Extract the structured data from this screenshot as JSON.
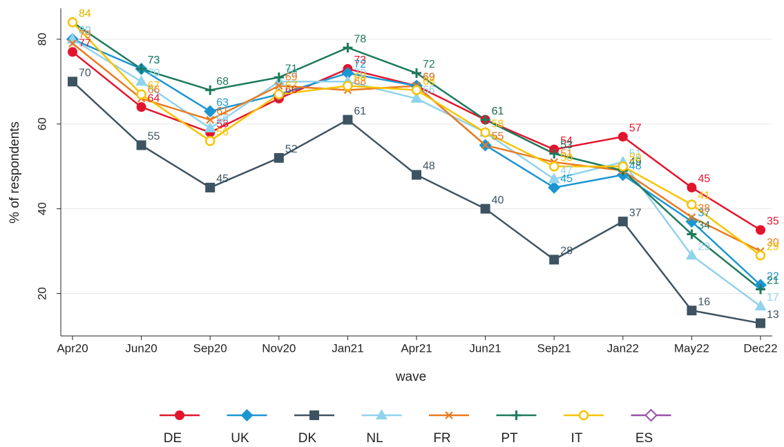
{
  "chart_data": {
    "type": "line",
    "categories": [
      "Apr20",
      "Jun20",
      "Sep20",
      "Nov20",
      "Jan21",
      "Apr21",
      "Jun21",
      "Sep21",
      "Jan22",
      "May22",
      "Dec22"
    ],
    "x_label": "wave",
    "y_label": "% of respondents",
    "ylim": [
      10,
      87.3
    ],
    "yticks": [
      20,
      40,
      60,
      80
    ],
    "grid": true,
    "series": [
      {
        "name": "DE",
        "color": "#e3142d",
        "marker": "circle",
        "values": [
          77,
          64,
          58,
          66,
          73,
          69,
          61,
          54,
          57,
          45,
          35
        ]
      },
      {
        "name": "UK",
        "color": "#1a96d2",
        "marker": "diamond",
        "values": [
          80,
          73,
          63,
          67,
          72,
          69,
          55,
          45,
          48,
          37,
          22
        ]
      },
      {
        "name": "DK",
        "color": "#3d5361",
        "marker": "square",
        "values": [
          70,
          55,
          45,
          52,
          61,
          48,
          40,
          28,
          37,
          16,
          13
        ]
      },
      {
        "name": "NL",
        "color": "#8fd3ec",
        "marker": "triangle",
        "values": [
          80,
          70,
          59,
          70,
          70,
          66,
          58,
          47,
          51,
          29,
          17
        ]
      },
      {
        "name": "FR",
        "color": "#ea7a1f",
        "marker": "x",
        "values": [
          79,
          66,
          61,
          69,
          68,
          69,
          55,
          51,
          49,
          38,
          30
        ]
      },
      {
        "name": "PT",
        "color": "#1d7a5c",
        "marker": "plus",
        "values": [
          84,
          73,
          68,
          71,
          78,
          72,
          61,
          53,
          49,
          34,
          21
        ]
      },
      {
        "name": "IT",
        "color": "#f7c300",
        "marker": "hollow-circle",
        "values": [
          84,
          67,
          56,
          67,
          69,
          68,
          58,
          50,
          50,
          41,
          29
        ]
      },
      {
        "name": "ES",
        "color": "#9a4fa8",
        "marker": "hollow-diamond",
        "values": [
          null,
          null,
          null,
          null,
          null,
          null,
          null,
          null,
          null,
          null,
          null
        ]
      }
    ]
  }
}
